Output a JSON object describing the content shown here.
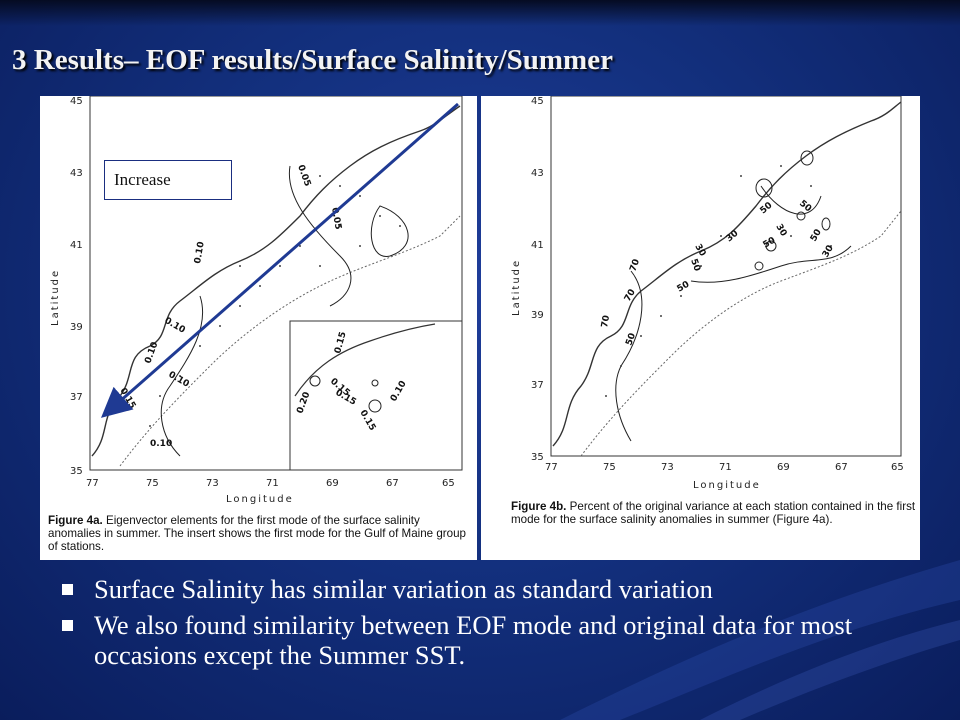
{
  "slide": {
    "title": "3 Results– EOF results/Surface Salinity/Summer",
    "callout": "Increase",
    "bullets": [
      "Surface Salinity has similar variation as standard variation",
      "We also found similarity between EOF mode and original data for most occasions except the Summer SST."
    ]
  },
  "figure_a": {
    "lat_ticks": [
      "45",
      "43",
      "41",
      "39",
      "37",
      "35"
    ],
    "lon_ticks": [
      "77",
      "75",
      "73",
      "71",
      "69",
      "67",
      "65"
    ],
    "ylabel": "Latitude",
    "xlabel": "Longitude",
    "contour_labels": [
      "0.05",
      "0.05",
      "0.10",
      "0.10",
      "0.10",
      "0.10",
      "0.15",
      "0.10"
    ],
    "inset_labels": [
      "0.15",
      "0.15",
      "0.20",
      "0.15",
      "0.10",
      "0.15"
    ],
    "caption_label": "Figure 4a.",
    "caption_text": "Eigenvector elements for the first mode of the surface salinity anomalies in summer. The insert shows the first mode for the Gulf of Maine group of stations."
  },
  "figure_b": {
    "lat_ticks": [
      "45",
      "43",
      "41",
      "39",
      "37",
      "35"
    ],
    "lon_ticks": [
      "77",
      "75",
      "73",
      "71",
      "69",
      "67",
      "65"
    ],
    "ylabel": "Latitude",
    "xlabel": "Longitude",
    "contour_labels": [
      "50",
      "50",
      "30",
      "30",
      "50",
      "30",
      "50",
      "50",
      "70",
      "70",
      "70",
      "50",
      "50",
      "30"
    ],
    "caption_label": "Figure 4b.",
    "caption_text": "Percent of the original variance at each station contained in the first mode for the surface salinity anomalies in summer (Figure 4a)."
  },
  "colors": {
    "background": "#13307e",
    "text": "#ffffff",
    "arrow": "#1f3a93"
  }
}
